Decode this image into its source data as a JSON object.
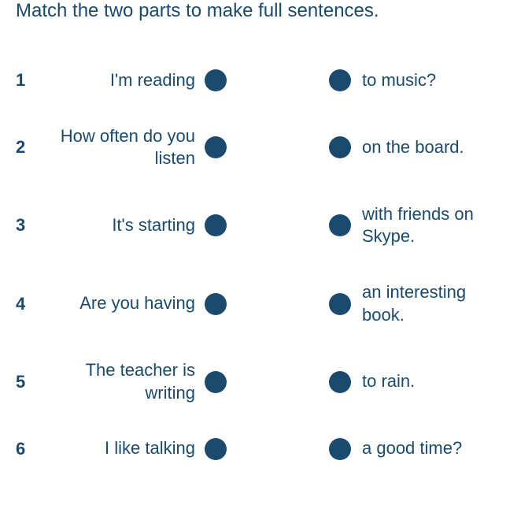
{
  "instruction": "Match the two parts to make full sentences.",
  "colors": {
    "text": "#1a4a6e",
    "dot": "#1a4a6e",
    "background": "#ffffff"
  },
  "fontsize": {
    "instruction": 24,
    "number": 22,
    "item": 22
  },
  "items": [
    {
      "num": "1",
      "left": "I'm reading",
      "right": "to music?"
    },
    {
      "num": "2",
      "left": "How often do you listen",
      "right": "on the board."
    },
    {
      "num": "3",
      "left": "It's starting",
      "right": "with friends on Skype."
    },
    {
      "num": "4",
      "left": "Are you having",
      "right": "an interesting book."
    },
    {
      "num": "5",
      "left": "The teacher is writing",
      "right": "to rain."
    },
    {
      "num": "6",
      "left": "I like talking",
      "right": "a good time?"
    }
  ]
}
